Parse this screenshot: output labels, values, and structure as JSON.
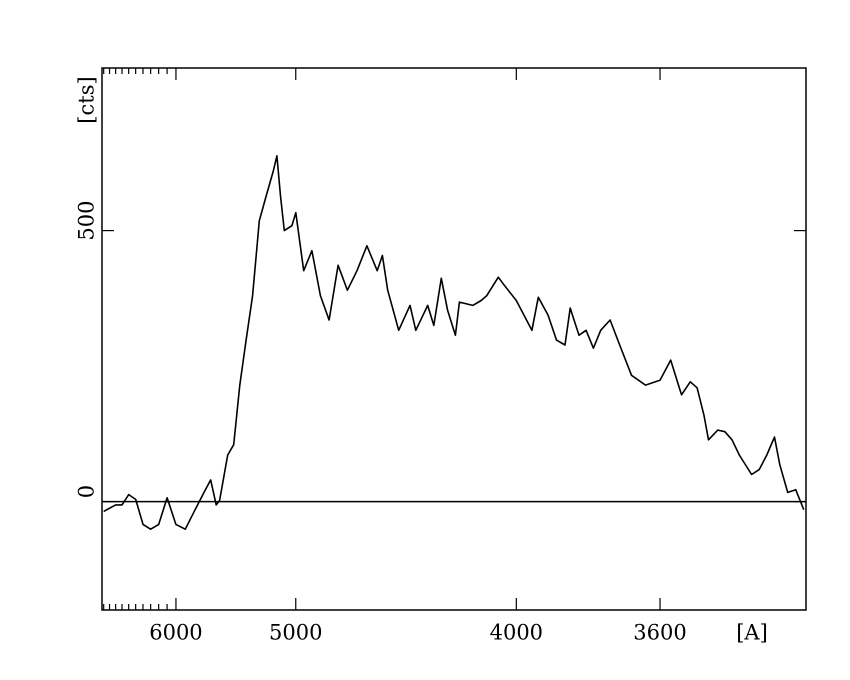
{
  "chart_data": {
    "type": "line",
    "xlabel": "[A]",
    "ylabel": "[cts]",
    "xscale": "inverse-square",
    "color": "#000000",
    "x": [
      7000,
      6800,
      6700,
      6600,
      6500,
      6400,
      6300,
      6200,
      6100,
      6000,
      5900,
      5800,
      5700,
      5650,
      5600,
      5570,
      5500,
      5450,
      5400,
      5350,
      5300,
      5250,
      5200,
      5150,
      5125,
      5100,
      5075,
      5025,
      5000,
      4950,
      4900,
      4850,
      4800,
      4750,
      4700,
      4650,
      4600,
      4550,
      4525,
      4500,
      4450,
      4400,
      4375,
      4325,
      4300,
      4270,
      4245,
      4215,
      4200,
      4150,
      4120,
      4100,
      4060,
      4040,
      4000,
      3950,
      3930,
      3900,
      3875,
      3850,
      3835,
      3810,
      3790,
      3770,
      3750,
      3725,
      3700,
      3670,
      3635,
      3600,
      3575,
      3550,
      3530,
      3515,
      3500,
      3490,
      3470,
      3455,
      3440,
      3425,
      3400,
      3385,
      3370,
      3355,
      3345,
      3330,
      3315,
      3300
    ],
    "values": [
      -18,
      -6,
      -6,
      13,
      4,
      -42,
      -51,
      -42,
      7,
      -42,
      -51,
      -15,
      22,
      40,
      -6,
      2,
      86,
      105,
      215,
      298,
      380,
      518,
      564,
      610,
      638,
      564,
      500,
      509,
      533,
      426,
      463,
      380,
      335,
      436,
      390,
      426,
      472,
      426,
      454,
      390,
      316,
      362,
      316,
      362,
      325,
      412,
      353,
      307,
      368,
      362,
      371,
      380,
      414,
      399,
      371,
      316,
      377,
      344,
      298,
      289,
      357,
      307,
      316,
      283,
      316,
      335,
      289,
      233,
      215,
      224,
      261,
      197,
      221,
      210,
      160,
      114,
      132,
      129,
      114,
      86,
      50,
      59,
      86,
      119,
      68,
      17,
      22,
      -15
    ],
    "xlim": [
      7030,
      3296
    ],
    "ylim": [
      -200,
      800
    ],
    "xticks": [
      6000,
      5000,
      4000,
      3600
    ],
    "yticks": [
      0,
      500
    ],
    "xminor": [
      7000,
      6900,
      6800,
      6700,
      6600,
      6500,
      6400,
      6300,
      6200,
      6100
    ],
    "reference_line": 0
  }
}
